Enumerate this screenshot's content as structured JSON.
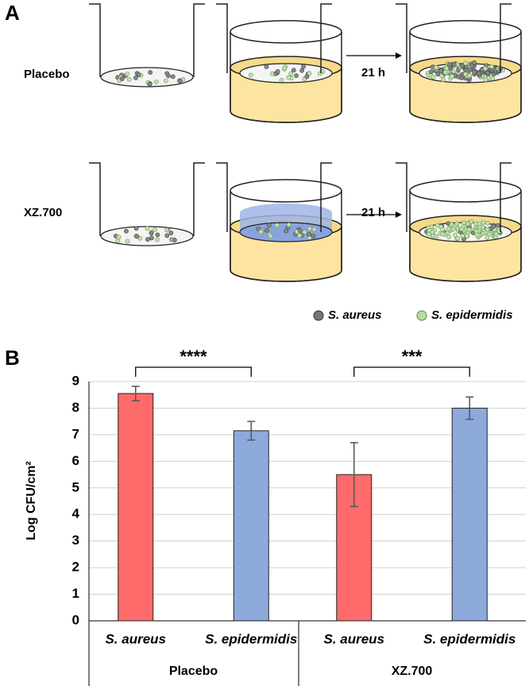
{
  "panel_a": {
    "label": "A",
    "rows": [
      {
        "label": "Placebo",
        "time": "21 h"
      },
      {
        "label": "XZ.700",
        "time": "21 h"
      }
    ],
    "legend": [
      "S. aureus",
      "S. epidermidis"
    ]
  },
  "panel_b_label": "B",
  "chart_data": {
    "type": "bar",
    "ylabel": "Log CFU/cm²",
    "categories": [
      "S. aureus",
      "S. epidermidis",
      "S. aureus",
      "S. epidermidis"
    ],
    "groups": [
      "Placebo",
      "XZ.700"
    ],
    "values": [
      8.55,
      7.15,
      5.5,
      8.0
    ],
    "errors": [
      0.27,
      0.35,
      1.2,
      0.42
    ],
    "colors": [
      "#ff6b6b",
      "#8eaadb",
      "#ff6b6b",
      "#8eaadb"
    ],
    "significance": [
      "****",
      "***"
    ],
    "ylim": [
      0,
      9
    ],
    "yticks": [
      0,
      1,
      2,
      3,
      4,
      5,
      6,
      7,
      8,
      9
    ],
    "grid": true
  }
}
